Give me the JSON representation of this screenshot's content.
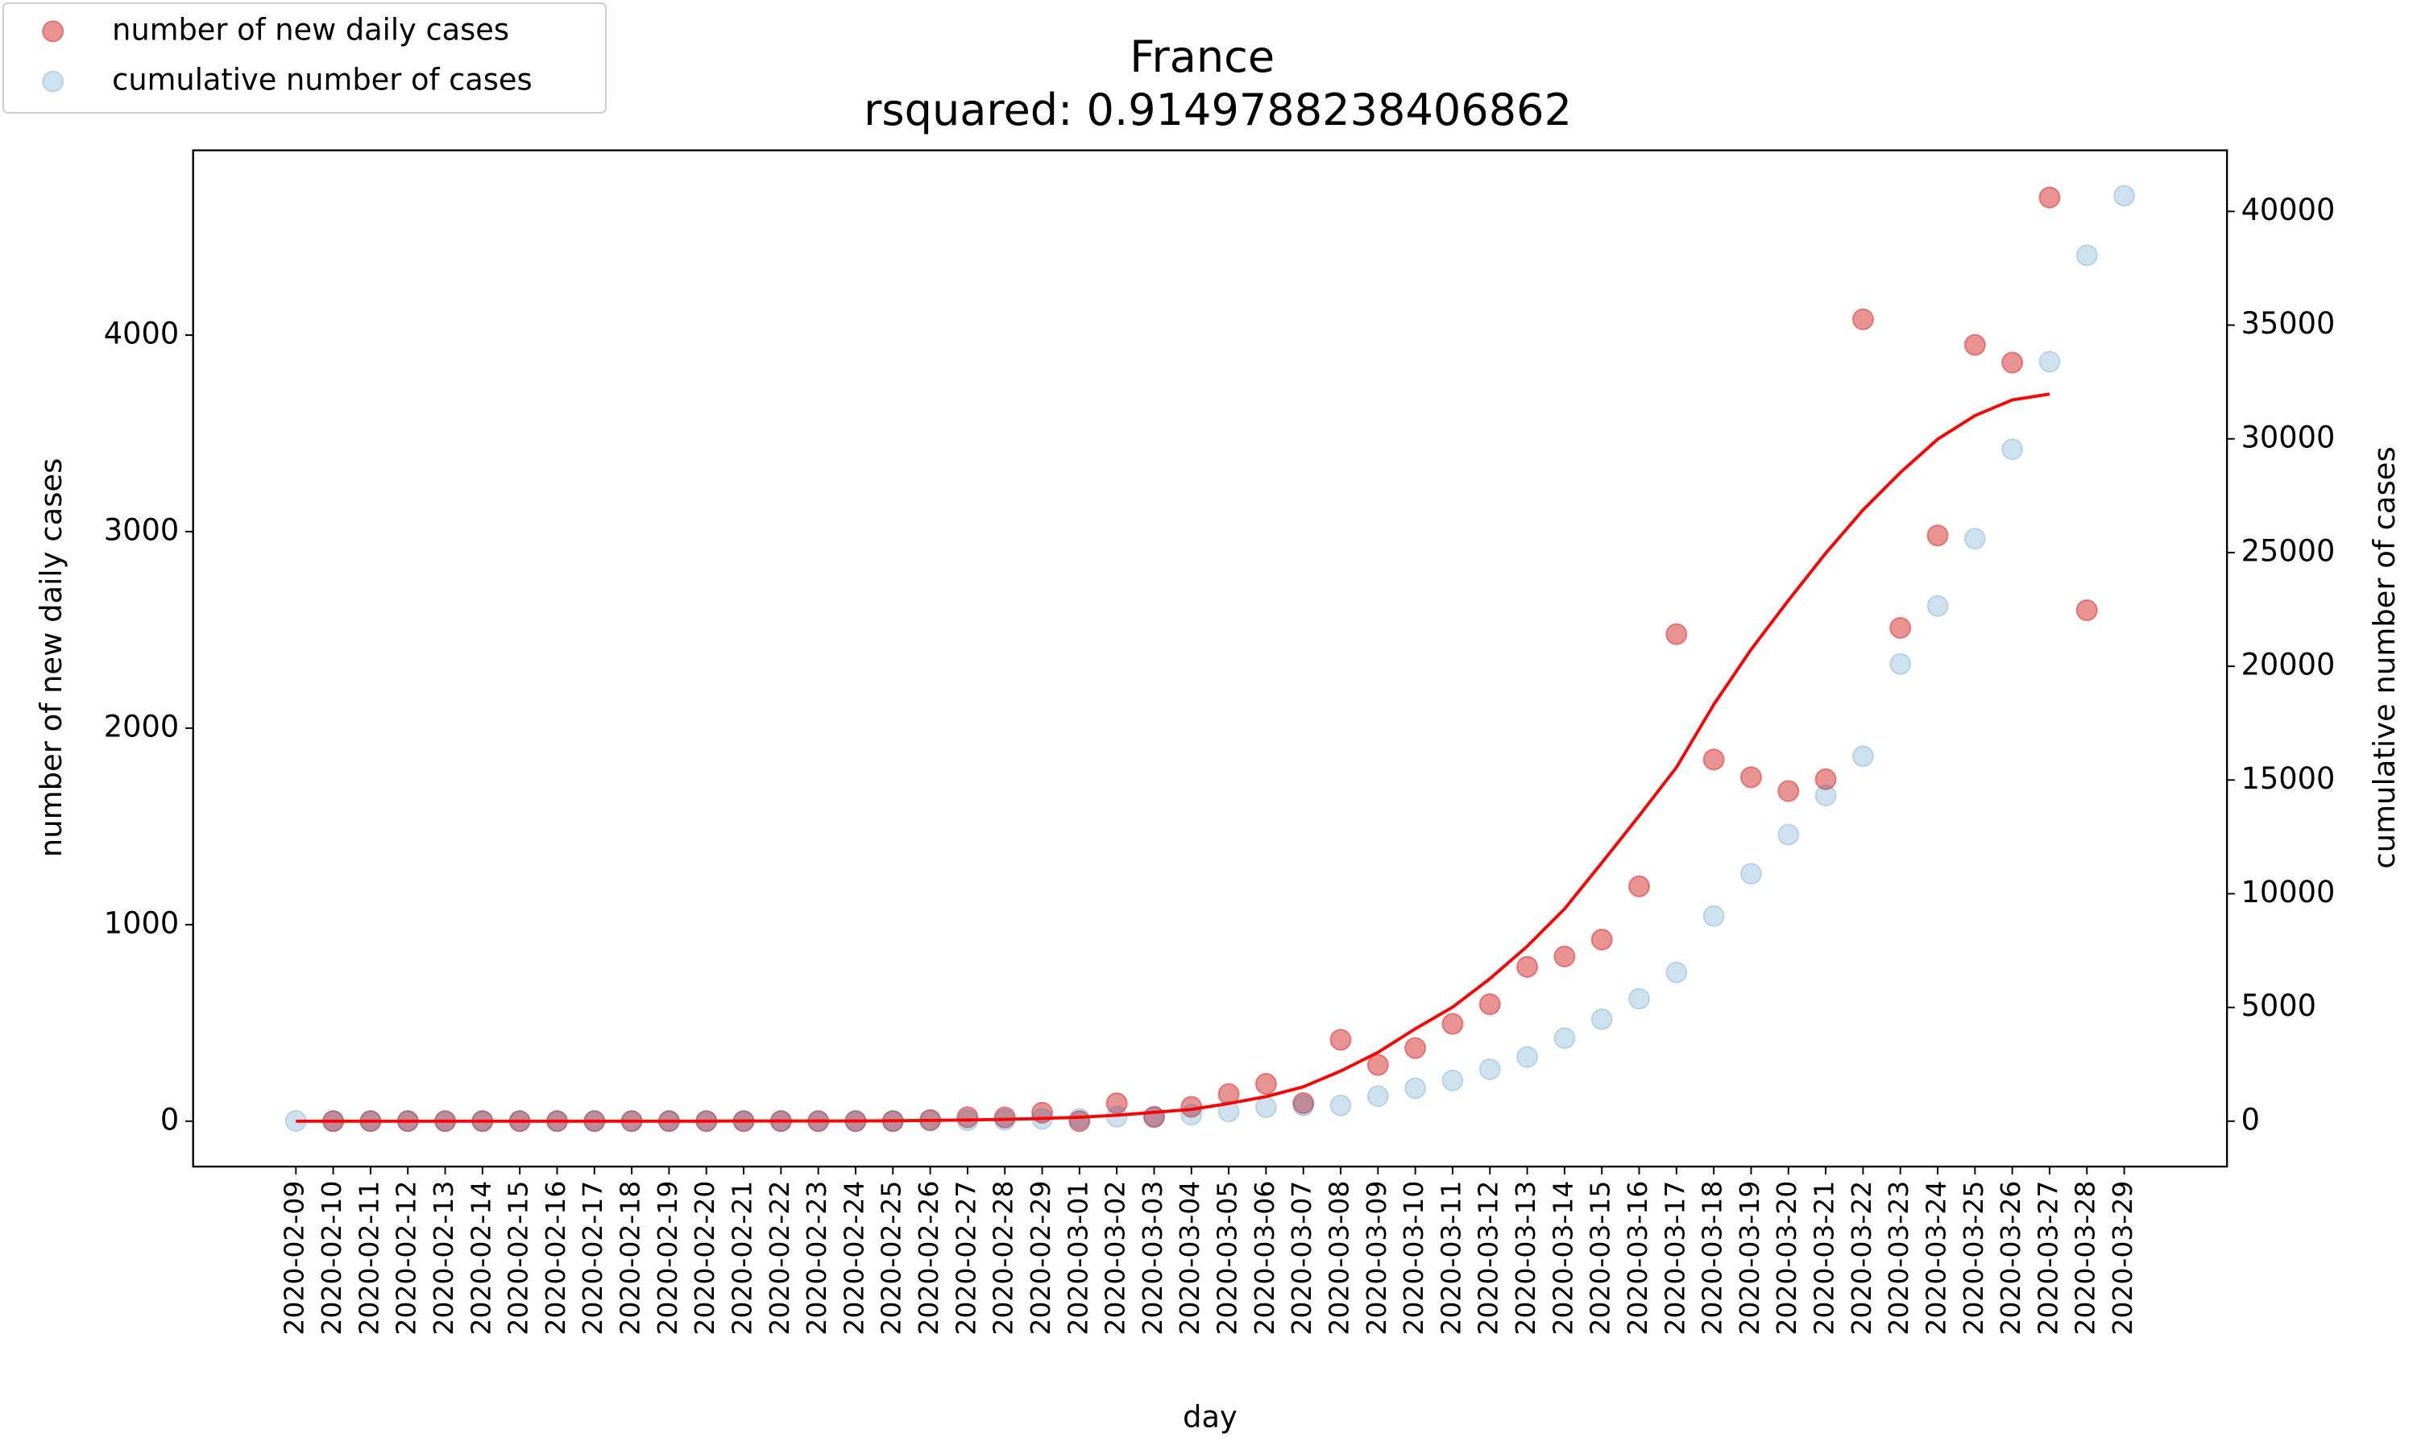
{
  "chart_data": {
    "type": "scatter",
    "title": "France",
    "subtitle": "rsquared: 0.9149788238406862",
    "xlabel": "day",
    "ylabel": "number of new daily cases",
    "y2label": "cumulative number of cases",
    "legend": "upper left",
    "x": [
      "2020-02-09",
      "2020-02-10",
      "2020-02-11",
      "2020-02-12",
      "2020-02-13",
      "2020-02-14",
      "2020-02-15",
      "2020-02-16",
      "2020-02-17",
      "2020-02-18",
      "2020-02-19",
      "2020-02-20",
      "2020-02-21",
      "2020-02-22",
      "2020-02-23",
      "2020-02-24",
      "2020-02-25",
      "2020-02-26",
      "2020-02-27",
      "2020-02-28",
      "2020-02-29",
      "2020-03-01",
      "2020-03-02",
      "2020-03-03",
      "2020-03-04",
      "2020-03-05",
      "2020-03-06",
      "2020-03-07",
      "2020-03-08",
      "2020-03-09",
      "2020-03-10",
      "2020-03-11",
      "2020-03-12",
      "2020-03-13",
      "2020-03-14",
      "2020-03-15",
      "2020-03-16",
      "2020-03-17",
      "2020-03-18",
      "2020-03-19",
      "2020-03-20",
      "2020-03-21",
      "2020-03-22",
      "2020-03-23",
      "2020-03-24",
      "2020-03-25",
      "2020-03-26",
      "2020-03-27",
      "2020-03-28",
      "2020-03-29"
    ],
    "ylim": [
      -231,
      4940
    ],
    "yticks": [
      0,
      1000,
      2000,
      3000,
      4000
    ],
    "y2lim": [
      -1997,
      42685
    ],
    "y2ticks": [
      0,
      5000,
      10000,
      15000,
      20000,
      25000,
      30000,
      35000,
      40000
    ],
    "ycolor": "#d62728",
    "y2color": "#1f77b4",
    "series": [
      {
        "name": "number of new daily cases",
        "mode": "markers",
        "color": "#d62728",
        "opacity": 0.5,
        "values": [
          null,
          0,
          0,
          0,
          0,
          0,
          0,
          0,
          0,
          0,
          0,
          0,
          0,
          0,
          0,
          0,
          0,
          6,
          20,
          19,
          43,
          0,
          91,
          21,
          73,
          138,
          190,
          92,
          414,
          286,
          372,
          495,
          595,
          785,
          838,
          924,
          1195,
          2478,
          1840,
          1750,
          1680,
          1740,
          4080,
          2510,
          2980,
          3950,
          3860,
          4700,
          2600,
          null
        ]
      },
      {
        "name": "cumulative number of cases",
        "axis": "y2",
        "mode": "markers",
        "color": "#1f77b4",
        "opacity": 0.22,
        "values": [
          11,
          11,
          11,
          11,
          11,
          11,
          11,
          12,
          12,
          12,
          12,
          12,
          12,
          12,
          12,
          12,
          12,
          18,
          38,
          57,
          100,
          100,
          191,
          212,
          285,
          423,
          613,
          690,
          690,
          1100,
          1450,
          1790,
          2280,
          2820,
          3650,
          4480,
          5380,
          6540,
          9020,
          10880,
          12600,
          14320,
          16040,
          20100,
          22650,
          25610,
          29540,
          33390,
          38070,
          40690
        ]
      },
      {
        "mode": "line",
        "color": "#ff0000",
        "values": [
          0,
          0,
          0,
          0,
          0,
          0,
          0,
          0,
          0,
          0,
          0,
          0,
          1,
          1,
          1,
          1,
          2,
          4,
          6,
          9,
          14,
          20,
          30,
          45,
          60,
          90,
          125,
          175,
          255,
          350,
          470,
          580,
          725,
          890,
          1080,
          1315,
          1554,
          1800,
          2120,
          2400,
          2650,
          2890,
          3110,
          3300,
          3470,
          3590,
          3670,
          3700,
          null,
          null
        ]
      }
    ]
  }
}
